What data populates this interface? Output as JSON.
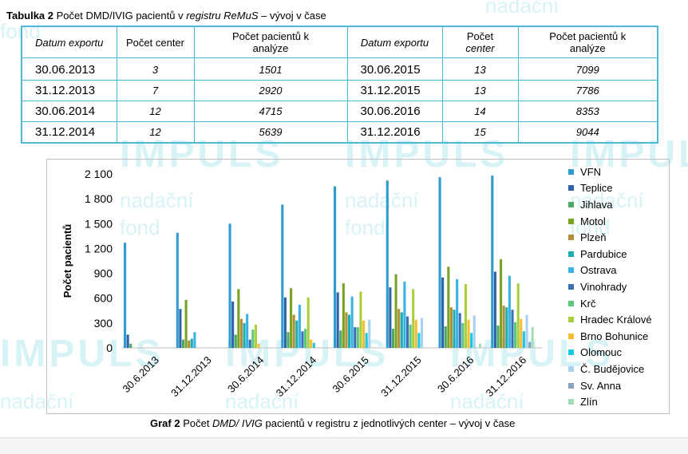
{
  "watermark": {
    "brand": "IMPULS",
    "line1": "nadační",
    "line2": "fond"
  },
  "table_caption": {
    "label": "Tabulka 2",
    "text_pre": " Počet DMD/IVIG pacientů v ",
    "text_italic": "registru ReMuS",
    "text_post": " – vývoj v čase"
  },
  "table": {
    "headers": {
      "date": "Datum exportu",
      "centers_left": "Počet center",
      "centers_right_l1": "Počet",
      "centers_right_l2": "center",
      "patients_l1": "Počet pacientů k",
      "patients_l2": "analýze"
    },
    "rows": [
      {
        "date_l": "30.06.2013",
        "centers_l": "3",
        "patients_l": "1501",
        "date_r": "30.06.2015",
        "centers_r": "13",
        "patients_r": "7099"
      },
      {
        "date_l": "31.12.2013",
        "centers_l": "7",
        "patients_l": "2920",
        "date_r": "31.12.2015",
        "centers_r": "13",
        "patients_r": "7786"
      },
      {
        "date_l": "30.06.2014",
        "centers_l": "12",
        "patients_l": "4715",
        "date_r": "30.06.2016",
        "centers_r": "14",
        "patients_r": "8353"
      },
      {
        "date_l": "31.12.2014",
        "centers_l": "12",
        "patients_l": "5639",
        "date_r": "31.12.2016",
        "centers_r": "15",
        "patients_r": "9044"
      }
    ]
  },
  "chart_data": {
    "type": "bar",
    "title": "",
    "xlabel": "",
    "ylabel": "Počet pacientů",
    "ylim": [
      0,
      2100
    ],
    "yticks": [
      0,
      300,
      600,
      900,
      1200,
      1500,
      1800,
      2100
    ],
    "ytick_labels": [
      "0",
      "300",
      "600",
      "900",
      "1 200",
      "1 500",
      "1 800",
      "2 100"
    ],
    "grid": false,
    "legend": "right",
    "categories": [
      "30.6.2013",
      "31.12.2013",
      "30.6.2014",
      "31.12.2014",
      "30.6.2015",
      "31.12.2015",
      "30.6.2016",
      "31.12.2016"
    ],
    "series": [
      {
        "name": "VFN",
        "color": "#2e9bd1",
        "values": [
          1270,
          1390,
          1500,
          1730,
          1950,
          2020,
          2060,
          2080
        ]
      },
      {
        "name": "Teplice",
        "color": "#2e63a8",
        "values": [
          160,
          470,
          560,
          610,
          670,
          730,
          850,
          920
        ]
      },
      {
        "name": "Jihlava",
        "color": "#4aaa66",
        "values": [
          50,
          100,
          160,
          190,
          210,
          230,
          260,
          270
        ]
      },
      {
        "name": "Motol",
        "color": "#7aa324",
        "values": [
          0,
          580,
          710,
          720,
          780,
          890,
          980,
          1070
        ]
      },
      {
        "name": "Plzeň",
        "color": "#b58f3a",
        "values": [
          0,
          90,
          350,
          400,
          430,
          470,
          490,
          510
        ]
      },
      {
        "name": "Pardubice",
        "color": "#1aaeb0",
        "values": [
          0,
          110,
          300,
          330,
          400,
          430,
          460,
          490
        ]
      },
      {
        "name": "Ostrava",
        "color": "#39b3e6",
        "values": [
          0,
          190,
          410,
          520,
          620,
          800,
          830,
          870
        ]
      },
      {
        "name": "Vinohrady",
        "color": "#3d6fb5",
        "values": [
          0,
          0,
          100,
          200,
          250,
          380,
          420,
          460
        ]
      },
      {
        "name": "Krč",
        "color": "#5cc680",
        "values": [
          0,
          0,
          220,
          230,
          250,
          280,
          300,
          310
        ]
      },
      {
        "name": "Hradec Králové",
        "color": "#a8cf3c",
        "values": [
          0,
          0,
          280,
          610,
          680,
          710,
          770,
          780
        ]
      },
      {
        "name": "Brno Bohunice",
        "color": "#f7bd34",
        "values": [
          0,
          0,
          50,
          100,
          330,
          340,
          340,
          350
        ]
      },
      {
        "name": "Olomouc",
        "color": "#19c9e6",
        "values": [
          0,
          0,
          0,
          60,
          180,
          180,
          180,
          200
        ]
      },
      {
        "name": "Č. Budějovice",
        "color": "#a7d2ef",
        "values": [
          0,
          0,
          0,
          0,
          340,
          360,
          390,
          400
        ]
      },
      {
        "name": "Sv. Anna",
        "color": "#8aa2c4",
        "values": [
          0,
          0,
          0,
          0,
          0,
          0,
          0,
          70
        ]
      },
      {
        "name": "Zlín",
        "color": "#a3ddb6",
        "values": [
          0,
          0,
          0,
          0,
          0,
          0,
          50,
          250
        ]
      }
    ]
  },
  "chart_caption": {
    "label": "Graf 2",
    "text_pre": " Počet ",
    "text_italic": "DMD/ IVIG",
    "text_post": " pacientů v registru z jednotlivých center – vývoj v čase"
  }
}
